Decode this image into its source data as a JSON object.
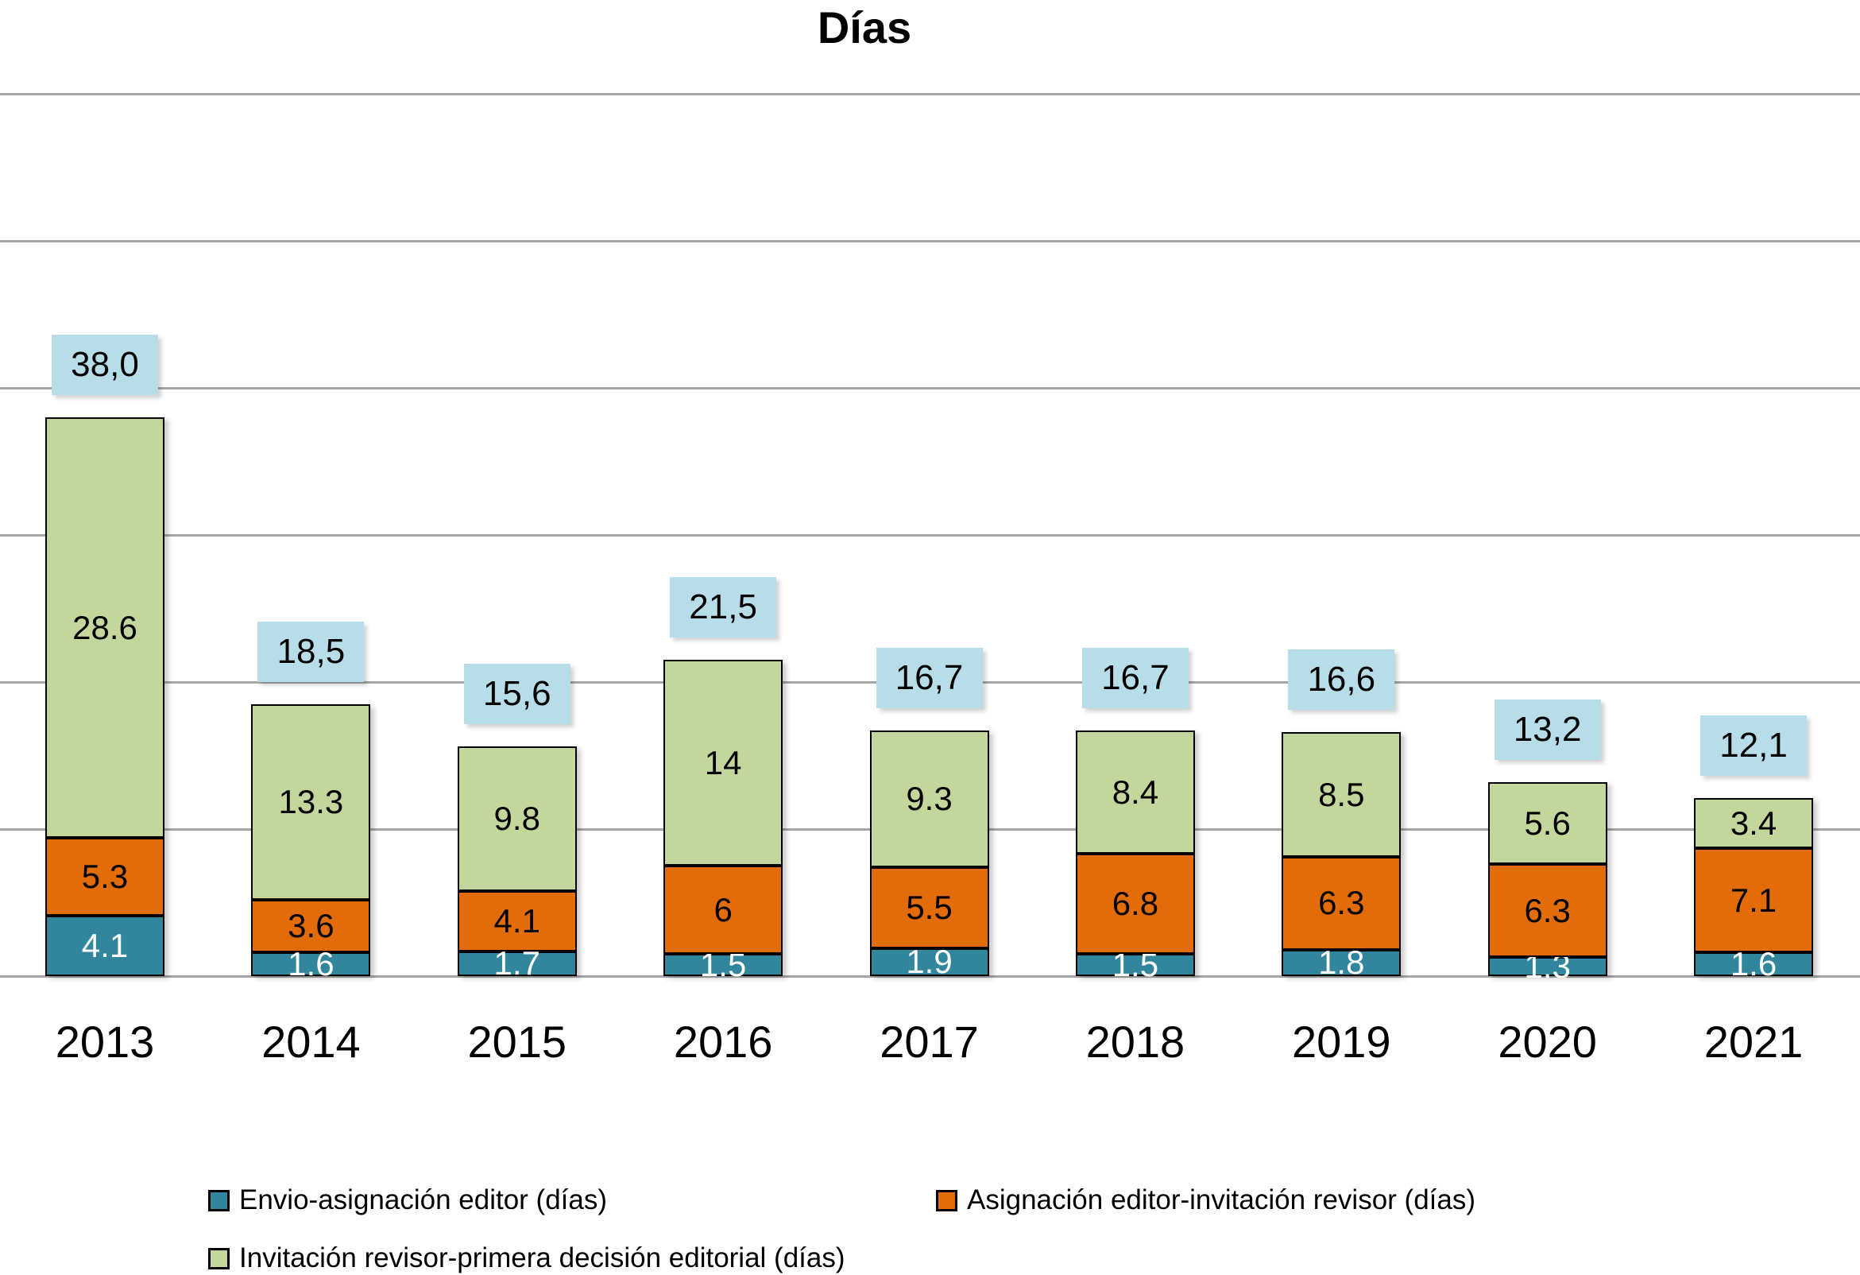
{
  "title": "Días",
  "colors": {
    "series_teal": "#31859C",
    "series_orange": "#E36C0A",
    "series_green": "#C3D69B",
    "total_box": "#B7DEE8",
    "gridline": "#A6A6A6",
    "bar_border": "#000000",
    "text": "#000000"
  },
  "chart_data": {
    "type": "bar",
    "stacked": true,
    "title": "Días",
    "xlabel": "",
    "ylabel": "",
    "ylim": [
      0,
      60
    ],
    "gridline_interval": 10,
    "grid": true,
    "y_axis_labels_visible": false,
    "legend_position": "bottom",
    "categories": [
      "2013",
      "2014",
      "2015",
      "2016",
      "2017",
      "2018",
      "2019",
      "2020",
      "2021"
    ],
    "series": [
      {
        "name": "Envio-asignación editor (días)",
        "color": "#31859C",
        "label_color": "#FFFFFF",
        "values": [
          4.1,
          1.6,
          1.7,
          1.5,
          1.9,
          1.5,
          1.8,
          1.3,
          1.6
        ],
        "labels": [
          "4.1",
          "1.6",
          "1.7",
          "1.5",
          "1.9",
          "1.5",
          "1.8",
          "1.3",
          "1.6"
        ]
      },
      {
        "name": "Asignación editor-invitación revisor (días)",
        "color": "#E36C0A",
        "label_color": "#000000",
        "values": [
          5.3,
          3.6,
          4.1,
          6,
          5.5,
          6.8,
          6.3,
          6.3,
          7.1
        ],
        "labels": [
          "5.3",
          "3.6",
          "4.1",
          "6",
          "5.5",
          "6.8",
          "6.3",
          "6.3",
          "7.1"
        ]
      },
      {
        "name": "Invitación revisor-primera decisión editorial (días)",
        "color": "#C3D69B",
        "label_color": "#000000",
        "values": [
          28.6,
          13.3,
          9.8,
          14,
          9.3,
          8.4,
          8.5,
          5.6,
          3.4
        ],
        "labels": [
          "28.6",
          "13.3",
          "9.8",
          "14",
          "9.3",
          "8.4",
          "8.5",
          "5.6",
          "3.4"
        ]
      }
    ],
    "totals": [
      "38,0",
      "18,5",
      "15,6",
      "21,5",
      "16,7",
      "16,7",
      "16,6",
      "13,2",
      "12,1"
    ]
  },
  "legend": {
    "items": [
      {
        "label": "Envio-asignación editor (días)",
        "color": "#31859C"
      },
      {
        "label": "Asignación editor-invitación revisor (días)",
        "color": "#E36C0A"
      },
      {
        "label": "Invitación revisor-primera decisión editorial (días)",
        "color": "#C3D69B"
      }
    ]
  }
}
